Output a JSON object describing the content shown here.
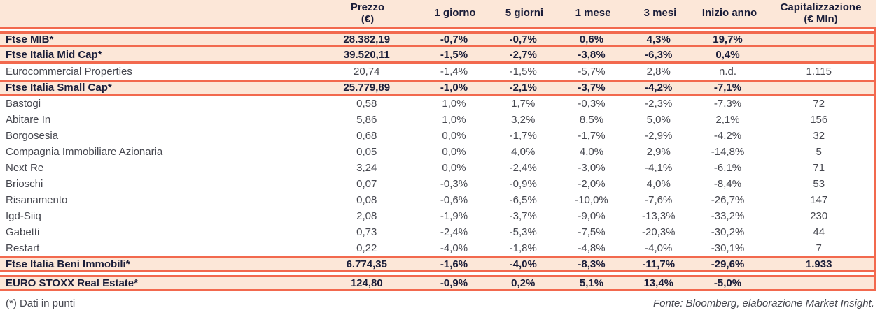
{
  "colors": {
    "accent": "#f2694e",
    "row_highlight_bg": "#fce7d8",
    "highlight_text": "#1a1d39",
    "body_text": "#46474f"
  },
  "table": {
    "columns": [
      {
        "label": "",
        "sub": ""
      },
      {
        "label": "Prezzo",
        "sub": "(€)"
      },
      {
        "label": "1 giorno",
        "sub": ""
      },
      {
        "label": "5 giorni",
        "sub": ""
      },
      {
        "label": "1 mese",
        "sub": ""
      },
      {
        "label": "3 mesi",
        "sub": ""
      },
      {
        "label": "Inizio anno",
        "sub": ""
      },
      {
        "label": "Capitalizzazione",
        "sub": "(€ Mln)"
      }
    ],
    "rows": [
      {
        "kind": "index",
        "gap_before": false,
        "cells": [
          "Ftse MIB*",
          "28.382,19",
          "-0,7%",
          "-0,7%",
          "0,6%",
          "4,3%",
          "19,7%",
          ""
        ]
      },
      {
        "kind": "index",
        "gap_before": false,
        "cells": [
          "Ftse Italia Mid Cap*",
          "39.520,11",
          "-1,5%",
          "-2,7%",
          "-3,8%",
          "-6,3%",
          "0,4%",
          ""
        ]
      },
      {
        "kind": "stock",
        "gap_before": false,
        "cells": [
          "Eurocommercial Properties",
          "20,74",
          "-1,4%",
          "-1,5%",
          "-5,7%",
          "2,8%",
          "n.d.",
          "1.115"
        ]
      },
      {
        "kind": "index",
        "gap_before": false,
        "cells": [
          "Ftse Italia Small Cap*",
          "25.779,89",
          "-1,0%",
          "-2,1%",
          "-3,7%",
          "-4,2%",
          "-7,1%",
          ""
        ]
      },
      {
        "kind": "stock",
        "gap_before": false,
        "cells": [
          "Bastogi",
          "0,58",
          "1,0%",
          "1,7%",
          "-0,3%",
          "-2,3%",
          "-7,3%",
          "72"
        ]
      },
      {
        "kind": "stock",
        "gap_before": false,
        "cells": [
          "Abitare In",
          "5,86",
          "1,0%",
          "3,2%",
          "8,5%",
          "5,0%",
          "2,1%",
          "156"
        ]
      },
      {
        "kind": "stock",
        "gap_before": false,
        "cells": [
          "Borgosesia",
          "0,68",
          "0,0%",
          "-1,7%",
          "-1,7%",
          "-2,9%",
          "-4,2%",
          "32"
        ]
      },
      {
        "kind": "stock",
        "gap_before": false,
        "cells": [
          "Compagnia Immobiliare Azionaria",
          "0,05",
          "0,0%",
          "4,0%",
          "4,0%",
          "2,9%",
          "-14,8%",
          "5"
        ]
      },
      {
        "kind": "stock",
        "gap_before": false,
        "cells": [
          "Next Re",
          "3,24",
          "0,0%",
          "-2,4%",
          "-3,0%",
          "-4,1%",
          "-6,1%",
          "71"
        ]
      },
      {
        "kind": "stock",
        "gap_before": false,
        "cells": [
          "Brioschi",
          "0,07",
          "-0,3%",
          "-0,9%",
          "-2,0%",
          "4,0%",
          "-8,4%",
          "53"
        ]
      },
      {
        "kind": "stock",
        "gap_before": false,
        "cells": [
          "Risanamento",
          "0,08",
          "-0,6%",
          "-6,5%",
          "-10,0%",
          "-7,6%",
          "-26,7%",
          "147"
        ]
      },
      {
        "kind": "stock",
        "gap_before": false,
        "cells": [
          "Igd-Siiq",
          "2,08",
          "-1,9%",
          "-3,7%",
          "-9,0%",
          "-13,3%",
          "-33,2%",
          "230"
        ]
      },
      {
        "kind": "stock",
        "gap_before": false,
        "cells": [
          "Gabetti",
          "0,73",
          "-2,4%",
          "-5,3%",
          "-7,5%",
          "-20,3%",
          "-30,2%",
          "44"
        ]
      },
      {
        "kind": "stock",
        "gap_before": false,
        "cells": [
          "Restart",
          "0,22",
          "-4,0%",
          "-1,8%",
          "-4,8%",
          "-4,0%",
          "-30,1%",
          "7"
        ]
      },
      {
        "kind": "index",
        "gap_before": false,
        "cells": [
          "Ftse Italia Beni Immobili*",
          "6.774,35",
          "-1,6%",
          "-4,0%",
          "-8,3%",
          "-11,7%",
          "-29,6%",
          "1.933"
        ]
      },
      {
        "kind": "index",
        "gap_before": true,
        "cells": [
          "EURO STOXX Real Estate*",
          "124,80",
          "-0,9%",
          "0,2%",
          "5,1%",
          "13,4%",
          "-5,0%",
          ""
        ]
      }
    ]
  },
  "footer": {
    "note": "(*) Dati in punti",
    "source": "Fonte: Bloomberg, elaborazione Market Insight."
  }
}
